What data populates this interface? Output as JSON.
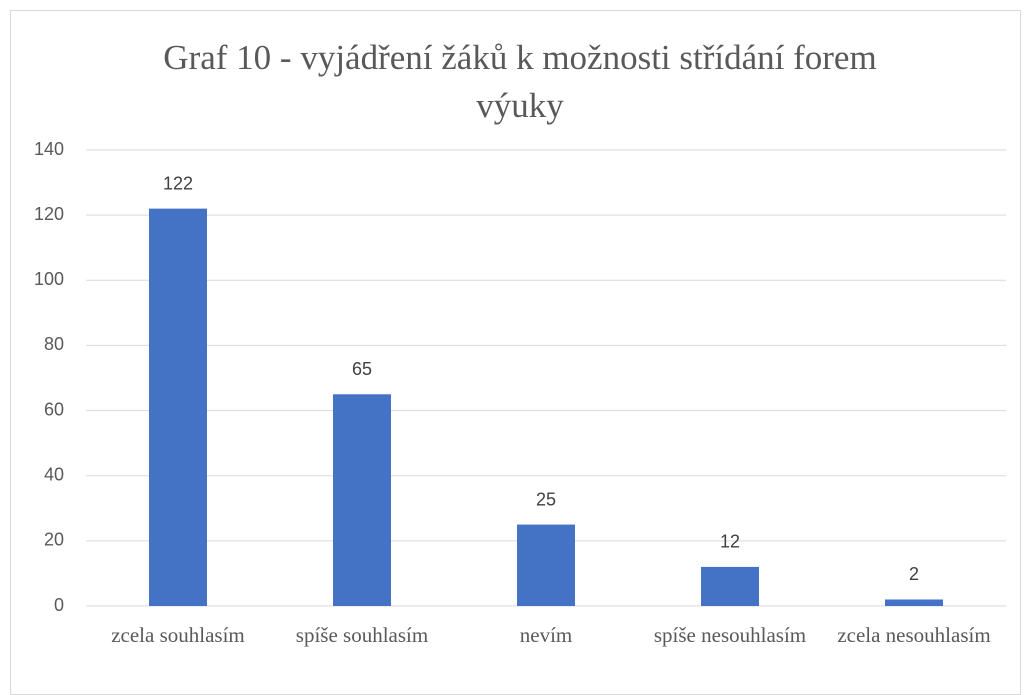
{
  "chart_data": {
    "type": "bar",
    "title": "Graf 10 - vyjádření žáků k možnosti střídání forem výuky",
    "categories": [
      "zcela souhlasím",
      "spíše souhlasím",
      "nevím",
      "spíše nesouhlasím",
      "zcela nesouhlasím"
    ],
    "values": [
      122,
      65,
      25,
      12,
      2
    ],
    "color": "#4472c4",
    "ylim": [
      0,
      140
    ],
    "yticks": [
      0,
      20,
      40,
      60,
      80,
      100,
      120,
      140
    ],
    "grid": true
  }
}
